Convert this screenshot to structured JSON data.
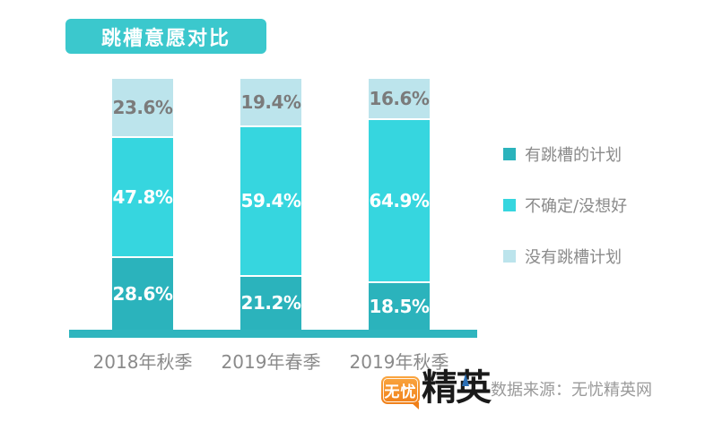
{
  "chart_data": {
    "type": "bar",
    "stacked": true,
    "title": "跳槽意愿对比",
    "categories": [
      "2018年秋季",
      "2019年春季",
      "2019年秋季"
    ],
    "series": [
      {
        "name": "有跳槽的计划",
        "values": [
          28.6,
          21.2,
          18.5
        ],
        "color": "#2BB3BC",
        "label_color": "#FFFFFF"
      },
      {
        "name": "不确定/没想好",
        "values": [
          47.8,
          59.4,
          64.9
        ],
        "color": "#36D6DF",
        "label_color": "#FFFFFF"
      },
      {
        "name": "没有跳槽计划",
        "values": [
          23.6,
          19.4,
          16.6
        ],
        "color": "#BCE4EC",
        "label_color": "#7B7B7B"
      }
    ],
    "value_suffix": "%",
    "ylim": [
      0,
      100
    ],
    "grid": false,
    "legend_position": "right",
    "xlabel": "",
    "ylabel": ""
  },
  "footer": {
    "logo": {
      "bubble_text": "无忧",
      "brand_text": "精英"
    },
    "source": "数据来源：无忧精英网"
  },
  "colors": {
    "title_box": "#3BC8CD",
    "axis": "#2FB5BE",
    "category_label": "#8A8A8A",
    "legend_text": "#8A8A8A",
    "source_text": "#9A9A9A",
    "logo_orange_top": "#FAA640",
    "logo_orange_bottom": "#F08019",
    "logo_blue": "#2B6FB5",
    "logo_black": "#1A1A1A"
  }
}
